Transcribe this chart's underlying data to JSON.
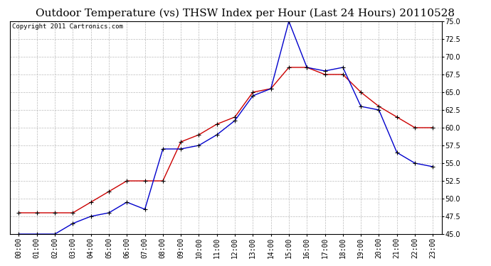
{
  "title": "Outdoor Temperature (vs) THSW Index per Hour (Last 24 Hours) 20110528",
  "copyright": "Copyright 2011 Cartronics.com",
  "hours": [
    "00:00",
    "01:00",
    "02:00",
    "03:00",
    "04:00",
    "05:00",
    "06:00",
    "07:00",
    "08:00",
    "09:00",
    "10:00",
    "11:00",
    "12:00",
    "13:00",
    "14:00",
    "15:00",
    "16:00",
    "17:00",
    "18:00",
    "19:00",
    "20:00",
    "21:00",
    "22:00",
    "23:00"
  ],
  "outdoor_temp": [
    48.0,
    48.0,
    48.0,
    48.0,
    49.5,
    51.0,
    52.5,
    52.5,
    52.5,
    58.0,
    59.0,
    60.5,
    61.5,
    65.0,
    65.5,
    68.5,
    68.5,
    67.5,
    67.5,
    65.0,
    63.0,
    61.5,
    60.0,
    60.0
  ],
  "thsw_index": [
    45.0,
    45.0,
    45.0,
    46.5,
    47.5,
    48.0,
    49.5,
    48.5,
    57.0,
    57.0,
    57.5,
    59.0,
    61.0,
    64.5,
    65.5,
    75.0,
    68.5,
    68.0,
    68.5,
    63.0,
    62.5,
    56.5,
    55.0,
    54.5
  ],
  "temp_color": "#cc0000",
  "thsw_color": "#0000cc",
  "marker": "+",
  "ylim": [
    45.0,
    75.0
  ],
  "yticks": [
    45.0,
    47.5,
    50.0,
    52.5,
    55.0,
    57.5,
    60.0,
    62.5,
    65.0,
    67.5,
    70.0,
    72.5,
    75.0
  ],
  "background_color": "#ffffff",
  "grid_color": "#bbbbbb",
  "title_fontsize": 11,
  "copyright_fontsize": 6.5,
  "tick_fontsize": 7
}
